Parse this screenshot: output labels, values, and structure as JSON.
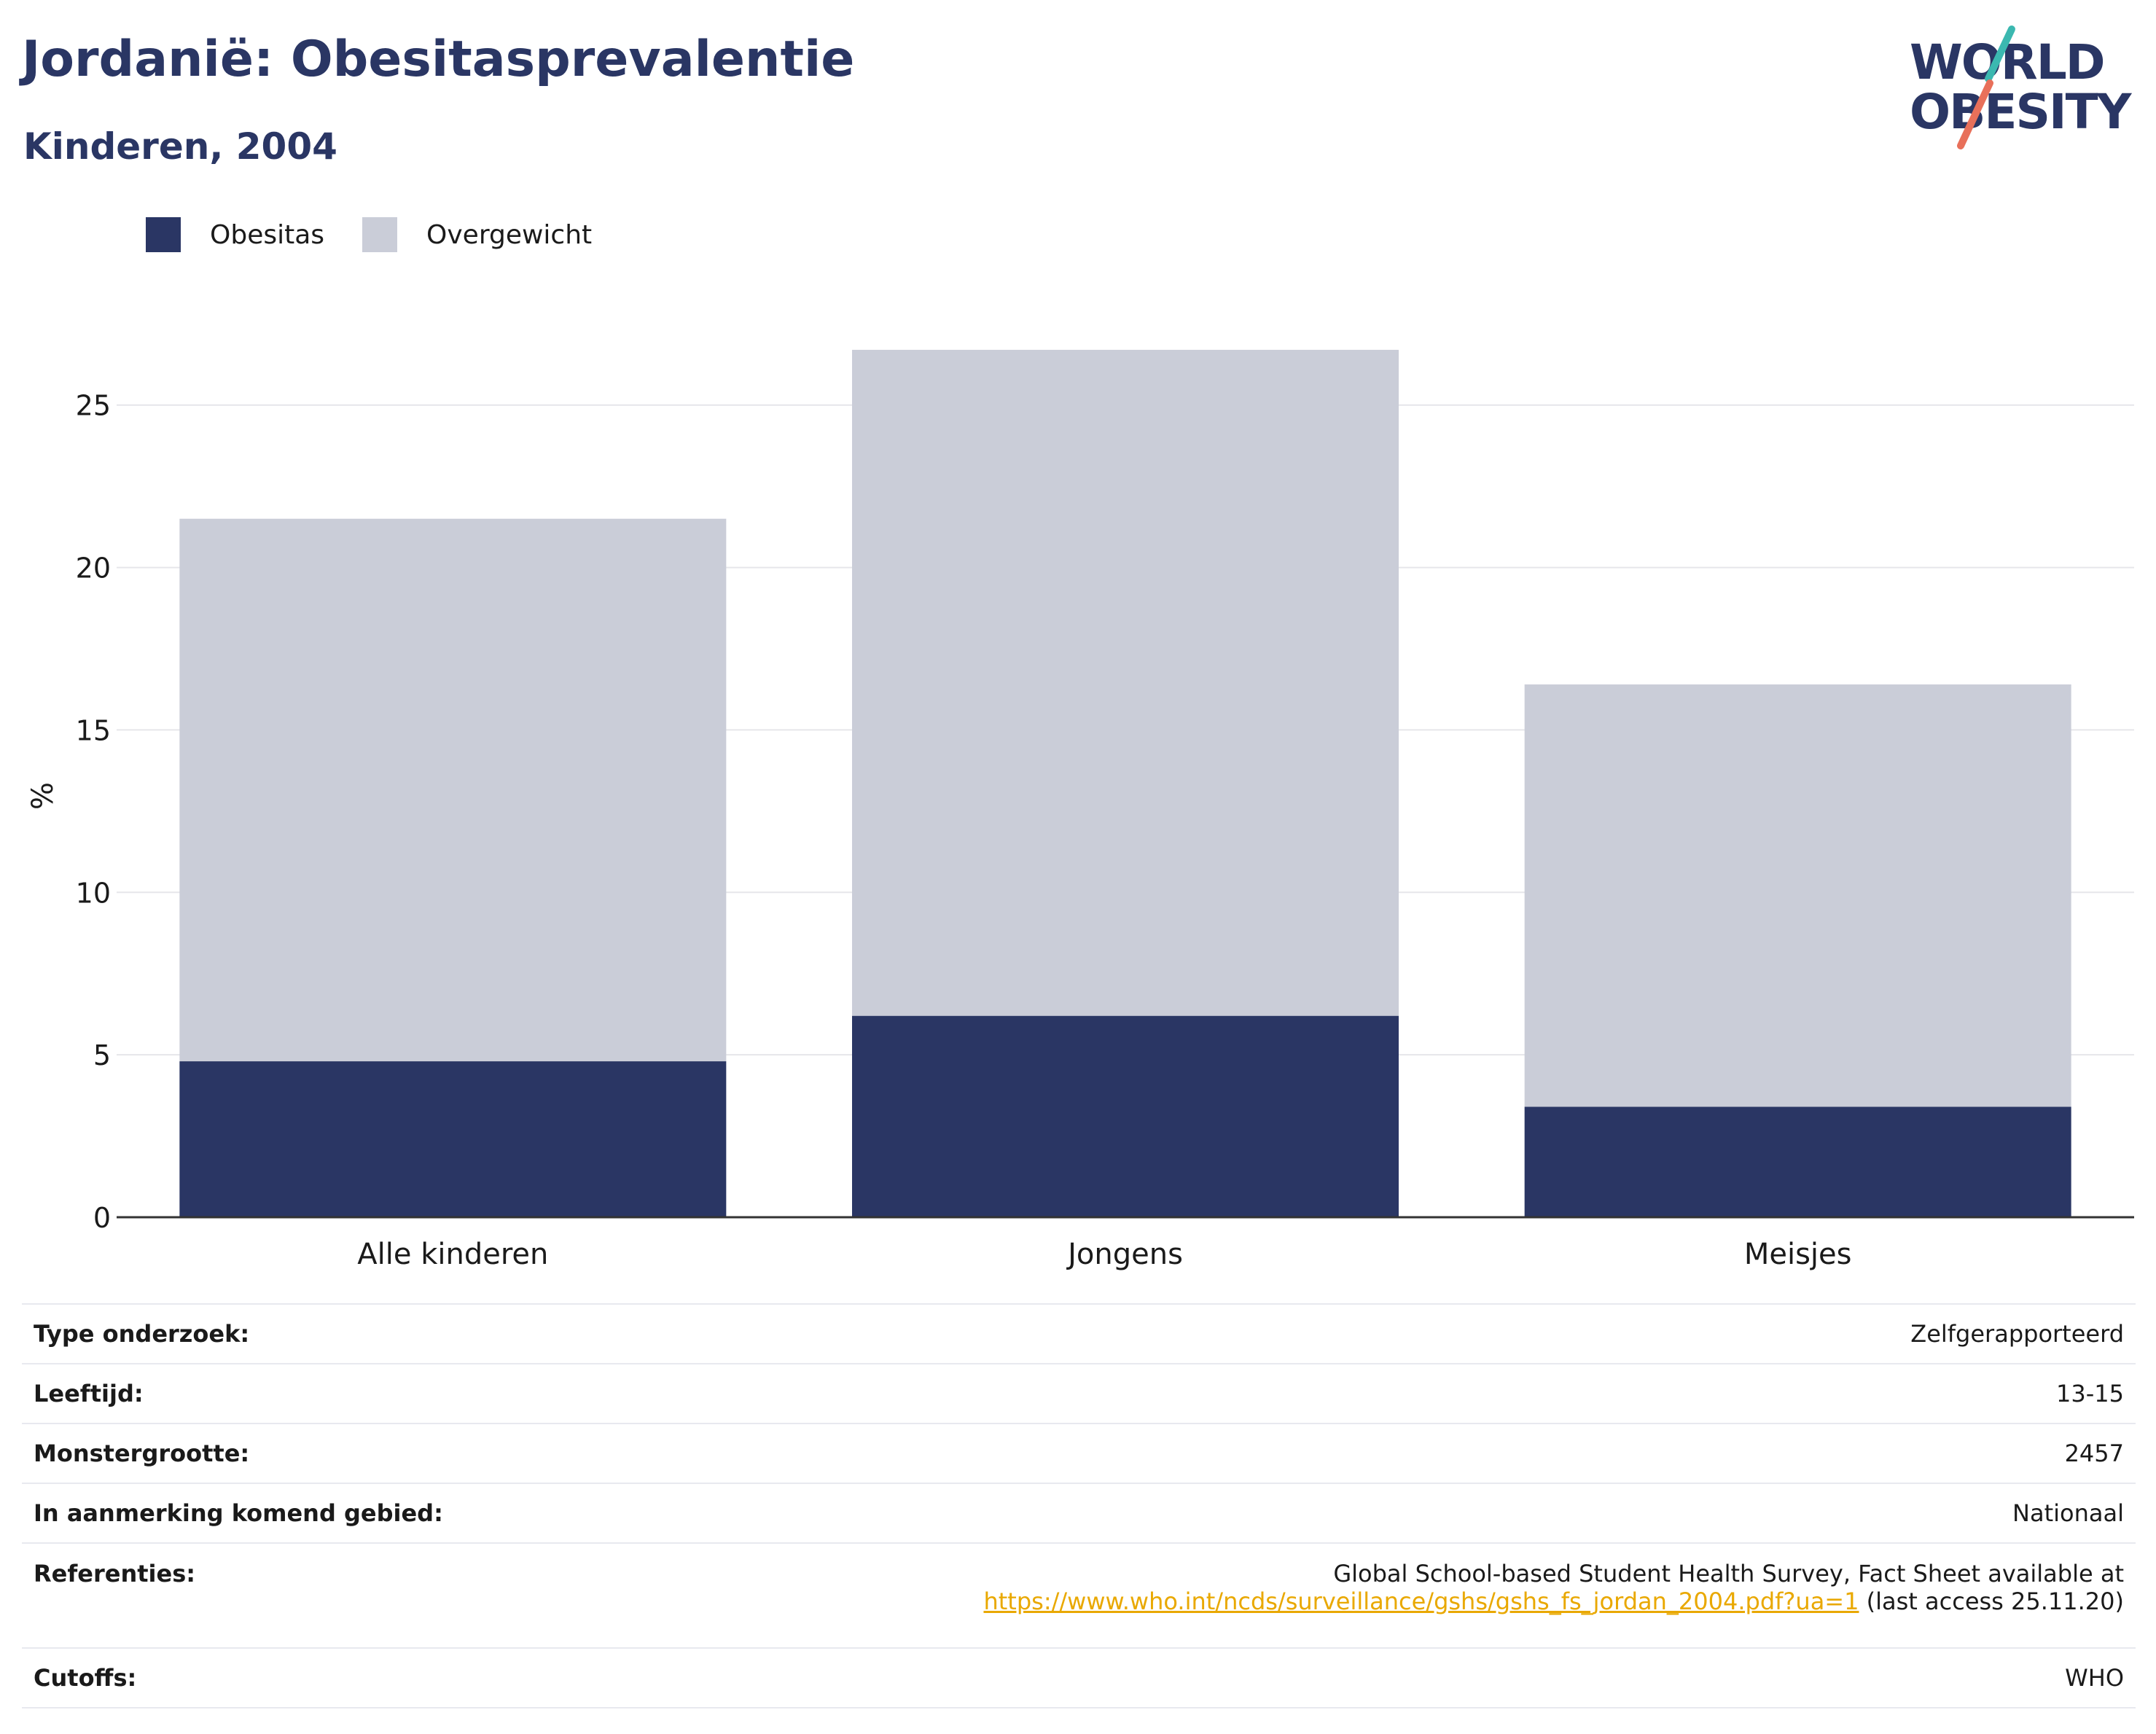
{
  "header": {
    "title": "Jordanië: Obesitasprevalentie",
    "subtitle": "Kinderen, 2004"
  },
  "logo": {
    "line1": "WORLD",
    "line2": "OBESITY",
    "colors": {
      "text": "#2a3664",
      "slash_top": "#3bb8b0",
      "slash_bottom": "#e8705a"
    }
  },
  "legend": [
    {
      "label": "Obesitas",
      "color": "#2a3664"
    },
    {
      "label": "Overgewicht",
      "color": "#cacdd8"
    }
  ],
  "chart_data": {
    "type": "bar",
    "stacked": true,
    "categories": [
      "Alle kinderen",
      "Jongens",
      "Meisjes"
    ],
    "series": [
      {
        "name": "Obesitas",
        "color": "#2a3664",
        "values": [
          4.8,
          6.2,
          3.4
        ]
      },
      {
        "name": "Overgewicht",
        "color": "#cacdd8",
        "values": [
          16.7,
          20.5,
          13.0
        ]
      }
    ],
    "ylabel": "%",
    "yticks": [
      0,
      5,
      10,
      15,
      20,
      25
    ],
    "ylim": [
      0,
      28
    ],
    "grid": true,
    "legend_position": "top-left"
  },
  "info": {
    "rows": [
      {
        "key": "Type onderzoek:",
        "value": "Zelfgerapporteerd"
      },
      {
        "key": "Leeftijd:",
        "value": "13-15"
      },
      {
        "key": "Monstergrootte:",
        "value": "2457"
      },
      {
        "key": "In aanmerking komend gebied:",
        "value": "Nationaal"
      }
    ],
    "references": {
      "key": "Referenties:",
      "line1": "Global School-based Student Health Survey, Fact Sheet available at",
      "link": "https://www.who.int/ncds/surveillance/gshs/gshs_fs_jordan_2004.pdf?ua=1",
      "after_link": " (last access 25.11.20)"
    },
    "cutoffs": {
      "key": "Cutoffs:",
      "value": "WHO"
    }
  }
}
